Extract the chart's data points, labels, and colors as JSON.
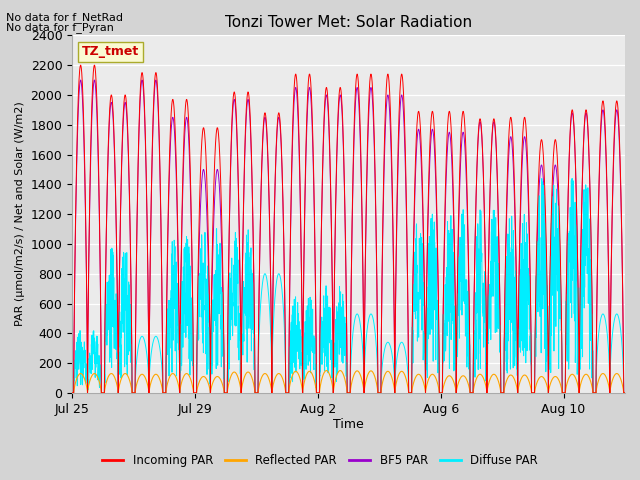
{
  "title": "Tonzi Tower Met: Solar Radiation",
  "xlabel": "Time",
  "ylabel": "PAR (μmol/m2/s) / Net and Solar (W/m2)",
  "ylim": [
    0,
    2400
  ],
  "yticks": [
    0,
    200,
    400,
    600,
    800,
    1000,
    1200,
    1400,
    1600,
    1800,
    2000,
    2200,
    2400
  ],
  "xtick_labels": [
    "Jul 25",
    "Jul 29",
    "Aug 2",
    "Aug 6",
    "Aug 10"
  ],
  "xtick_positions": [
    0,
    4,
    8,
    12,
    16
  ],
  "no_data_text": [
    "No data for f_NetRad",
    "No data for f_Pyran"
  ],
  "legend_label": "TZ_tmet",
  "colors": {
    "incoming": "#ff0000",
    "reflected": "#ffa500",
    "bfs": "#9900cc",
    "diffuse": "#00eeff"
  },
  "fig_bg_color": "#d4d4d4",
  "plot_bg_color": "#ebebeb",
  "legend_entries": [
    "Incoming PAR",
    "Reflected PAR",
    "BF5 PAR",
    "Diffuse PAR"
  ],
  "n_days": 18,
  "pts_per_day": 144,
  "incoming_peaks": [
    2200,
    2000,
    2150,
    1970,
    1780,
    2020,
    1880,
    2140,
    2050,
    2140,
    2140,
    1890,
    1890,
    1840,
    1850,
    1700,
    1900,
    1960
  ],
  "reflected_peaks": [
    130,
    130,
    125,
    130,
    110,
    140,
    130,
    145,
    150,
    148,
    145,
    125,
    115,
    125,
    120,
    110,
    125,
    130
  ],
  "bfs_peaks": [
    2100,
    1950,
    2100,
    1850,
    1500,
    1970,
    1850,
    2050,
    2000,
    2050,
    2000,
    1770,
    1750,
    1820,
    1720,
    1530,
    1880,
    1900
  ],
  "diffuse_peaks": [
    280,
    650,
    380,
    700,
    740,
    730,
    800,
    430,
    480,
    530,
    340,
    800,
    820,
    820,
    800,
    960,
    960,
    530
  ],
  "diffuse_jagged": [
    true,
    true,
    false,
    true,
    true,
    true,
    false,
    true,
    true,
    false,
    false,
    true,
    true,
    true,
    true,
    true,
    true,
    false
  ]
}
